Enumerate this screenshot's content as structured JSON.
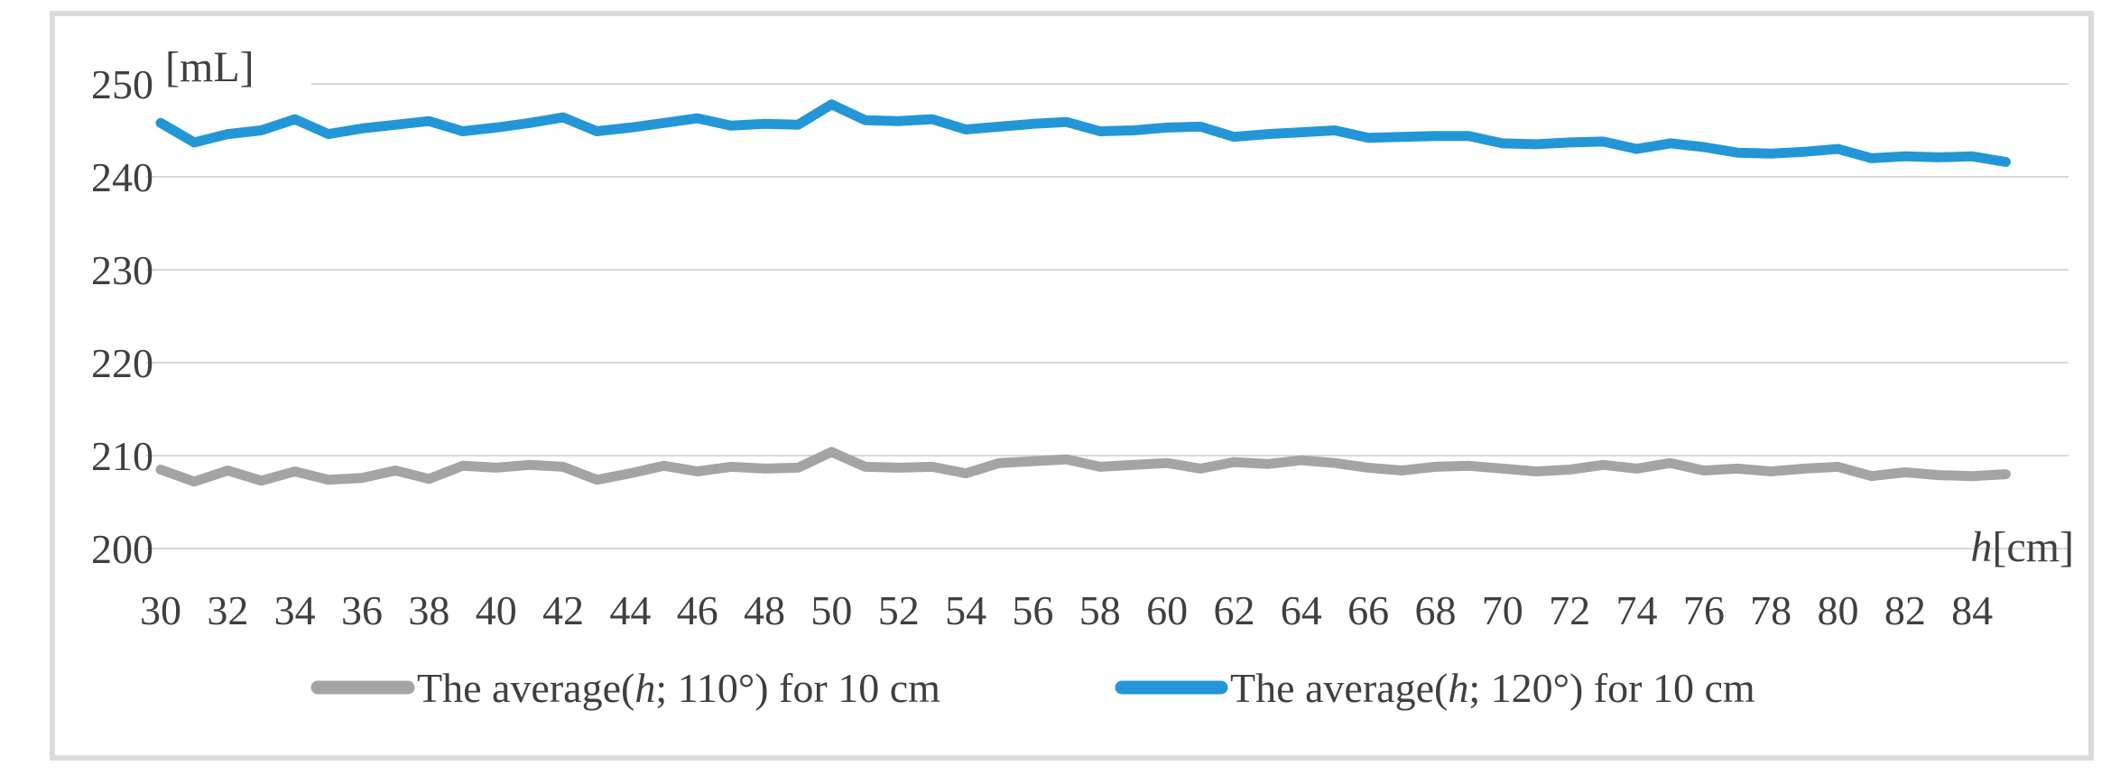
{
  "chart_data": {
    "type": "line",
    "title": "",
    "ylabel": "[mL]",
    "xlabel": "h[cm]",
    "xlabel_parts": {
      "var": "h",
      "unit": "[cm]"
    },
    "ylim": [
      200,
      250
    ],
    "y_ticks": [
      250,
      240,
      230,
      220,
      210,
      200
    ],
    "x_tick_labels": [
      "30",
      "32",
      "34",
      "36",
      "38",
      "40",
      "42",
      "44",
      "46",
      "48",
      "50",
      "52",
      "54",
      "56",
      "58",
      "60",
      "62",
      "64",
      "66",
      "68",
      "70",
      "72",
      "74",
      "76",
      "78",
      "80",
      "82",
      "84"
    ],
    "categories": [
      30,
      31,
      32,
      33,
      34,
      35,
      36,
      37,
      38,
      39,
      40,
      41,
      42,
      43,
      44,
      45,
      46,
      47,
      48,
      49,
      50,
      51,
      52,
      53,
      54,
      55,
      56,
      57,
      58,
      59,
      60,
      61,
      62,
      63,
      64,
      65,
      66,
      67,
      68,
      69,
      70,
      71,
      72,
      73,
      74,
      75,
      76,
      77,
      78,
      79,
      80,
      81,
      82,
      83,
      84,
      85
    ],
    "grid": true,
    "legend_position": "bottom",
    "series": [
      {
        "id": "110-deg",
        "name": "The average(h; 110°) for 10 cm",
        "name_parts": {
          "prefix": "The average(",
          "var": "h",
          "suffix": "; 110°) for 10 cm"
        },
        "color": "#a6a4a2",
        "values": [
          208.5,
          207.2,
          208.4,
          207.3,
          208.3,
          207.4,
          207.6,
          208.4,
          207.5,
          208.9,
          208.7,
          209.0,
          208.8,
          207.4,
          208.1,
          208.9,
          208.3,
          208.8,
          208.6,
          208.7,
          210.4,
          208.8,
          208.7,
          208.8,
          208.1,
          209.2,
          209.4,
          209.6,
          208.8,
          209.0,
          209.2,
          208.6,
          209.3,
          209.1,
          209.5,
          209.2,
          208.7,
          208.4,
          208.8,
          208.9,
          208.6,
          208.3,
          208.5,
          209.0,
          208.6,
          209.2,
          208.4,
          208.6,
          208.3,
          208.6,
          208.8,
          207.8,
          208.2,
          207.9,
          207.8,
          208.0
        ]
      },
      {
        "id": "120-deg",
        "name": "The average(h; 120°) for 10 cm",
        "name_parts": {
          "prefix": "The average(",
          "var": "h",
          "suffix": "; 120°) for 10 cm"
        },
        "color": "#2396d7",
        "values": [
          245.8,
          243.7,
          244.6,
          245.0,
          246.2,
          244.6,
          245.2,
          245.6,
          246.0,
          244.9,
          245.3,
          245.8,
          246.4,
          244.9,
          245.3,
          245.8,
          246.3,
          245.5,
          245.7,
          245.6,
          247.8,
          246.1,
          246.0,
          246.2,
          245.1,
          245.4,
          245.7,
          245.9,
          244.9,
          245.0,
          245.3,
          245.4,
          244.3,
          244.6,
          244.8,
          245.0,
          244.2,
          244.3,
          244.4,
          244.4,
          243.6,
          243.5,
          243.7,
          243.8,
          243.0,
          243.6,
          243.2,
          242.6,
          242.5,
          242.7,
          243.0,
          242.0,
          242.2,
          242.1,
          242.2,
          241.6
        ]
      }
    ],
    "colors": {
      "grid": "#d9d9d9",
      "border": "#dbdbdb",
      "text": "#3f3f3f"
    }
  }
}
